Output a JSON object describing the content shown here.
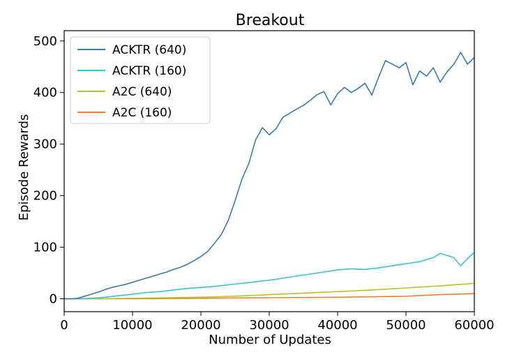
{
  "chart_data": {
    "type": "line",
    "title": "Breakout",
    "xlabel": "Number of Updates",
    "ylabel": "Episode Rewards",
    "xlim": [
      0,
      60000
    ],
    "ylim": [
      -25,
      520
    ],
    "xticks": [
      0,
      10000,
      20000,
      30000,
      40000,
      50000,
      60000
    ],
    "yticks": [
      0,
      100,
      200,
      300,
      400,
      500
    ],
    "grid": false,
    "legend_position": "top-left",
    "series": [
      {
        "name": "ACKTR (640)",
        "color": "#3a78b0",
        "points": [
          [
            0,
            0
          ],
          [
            1000,
            0
          ],
          [
            2000,
            1
          ],
          [
            3000,
            5
          ],
          [
            4000,
            9
          ],
          [
            5000,
            13
          ],
          [
            6000,
            18
          ],
          [
            7000,
            22
          ],
          [
            8000,
            25
          ],
          [
            9000,
            28
          ],
          [
            10000,
            32
          ],
          [
            11000,
            36
          ],
          [
            12000,
            40
          ],
          [
            13000,
            44
          ],
          [
            14000,
            48
          ],
          [
            15000,
            52
          ],
          [
            16000,
            57
          ],
          [
            17000,
            61
          ],
          [
            18000,
            67
          ],
          [
            19000,
            74
          ],
          [
            20000,
            82
          ],
          [
            21000,
            92
          ],
          [
            22000,
            108
          ],
          [
            23000,
            125
          ],
          [
            24000,
            152
          ],
          [
            25000,
            190
          ],
          [
            26000,
            232
          ],
          [
            27000,
            262
          ],
          [
            28000,
            308
          ],
          [
            29000,
            332
          ],
          [
            30000,
            318
          ],
          [
            31000,
            330
          ],
          [
            32000,
            352
          ],
          [
            33000,
            360
          ],
          [
            34000,
            368
          ],
          [
            35000,
            375
          ],
          [
            36000,
            385
          ],
          [
            37000,
            396
          ],
          [
            38000,
            402
          ],
          [
            39000,
            376
          ],
          [
            40000,
            398
          ],
          [
            41000,
            410
          ],
          [
            42000,
            400
          ],
          [
            43000,
            408
          ],
          [
            44000,
            418
          ],
          [
            45000,
            395
          ],
          [
            46000,
            430
          ],
          [
            47000,
            462
          ],
          [
            48000,
            455
          ],
          [
            49000,
            448
          ],
          [
            50000,
            458
          ],
          [
            51000,
            415
          ],
          [
            52000,
            442
          ],
          [
            53000,
            432
          ],
          [
            54000,
            448
          ],
          [
            55000,
            420
          ],
          [
            56000,
            440
          ],
          [
            57000,
            455
          ],
          [
            58000,
            478
          ],
          [
            59000,
            455
          ],
          [
            60000,
            468
          ]
        ]
      },
      {
        "name": "ACKTR (160)",
        "color": "#38c4d4",
        "points": [
          [
            0,
            0
          ],
          [
            2000,
            0
          ],
          [
            4000,
            1
          ],
          [
            6000,
            3
          ],
          [
            8000,
            6
          ],
          [
            10000,
            9
          ],
          [
            12000,
            12
          ],
          [
            14000,
            14
          ],
          [
            16000,
            17
          ],
          [
            18000,
            20
          ],
          [
            20000,
            22
          ],
          [
            22000,
            24
          ],
          [
            24000,
            27
          ],
          [
            26000,
            30
          ],
          [
            28000,
            33
          ],
          [
            30000,
            36
          ],
          [
            32000,
            40
          ],
          [
            34000,
            44
          ],
          [
            36000,
            48
          ],
          [
            38000,
            52
          ],
          [
            40000,
            56
          ],
          [
            42000,
            58
          ],
          [
            44000,
            57
          ],
          [
            46000,
            60
          ],
          [
            48000,
            64
          ],
          [
            50000,
            68
          ],
          [
            52000,
            72
          ],
          [
            54000,
            80
          ],
          [
            55000,
            88
          ],
          [
            56000,
            84
          ],
          [
            57000,
            80
          ],
          [
            58000,
            64
          ],
          [
            59000,
            78
          ],
          [
            60000,
            90
          ]
        ]
      },
      {
        "name": "A2C (640)",
        "color": "#b5c226",
        "points": [
          [
            0,
            0
          ],
          [
            5000,
            0
          ],
          [
            10000,
            1
          ],
          [
            15000,
            2
          ],
          [
            20000,
            3
          ],
          [
            25000,
            5
          ],
          [
            30000,
            8
          ],
          [
            35000,
            11
          ],
          [
            40000,
            14
          ],
          [
            45000,
            17
          ],
          [
            50000,
            21
          ],
          [
            55000,
            25
          ],
          [
            60000,
            30
          ]
        ]
      },
      {
        "name": "A2C (160)",
        "color": "#f2812a",
        "points": [
          [
            0,
            0
          ],
          [
            10000,
            0
          ],
          [
            20000,
            1
          ],
          [
            30000,
            2
          ],
          [
            40000,
            3
          ],
          [
            45000,
            4
          ],
          [
            50000,
            5
          ],
          [
            55000,
            8
          ],
          [
            60000,
            10
          ]
        ]
      }
    ]
  }
}
